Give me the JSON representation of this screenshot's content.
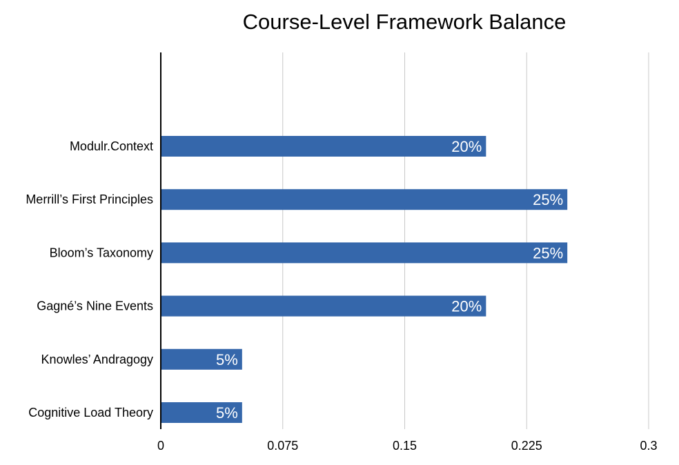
{
  "chart_data": {
    "type": "bar",
    "orientation": "horizontal",
    "title": "Course-Level Framework Balance",
    "xlabel": "",
    "ylabel": "",
    "xlim": [
      0,
      0.3
    ],
    "xticks": [
      "0",
      "0.075",
      "0.15",
      "0.225",
      "0.3"
    ],
    "grid": true,
    "categories": [
      "Modulr.Context",
      "Merrill’s First Principles",
      "Bloom’s Taxonomy",
      "Gagné’s Nine Events",
      "Knowles’ Andragogy",
      "Cognitive Load Theory"
    ],
    "values": [
      0.2,
      0.25,
      0.25,
      0.2,
      0.05,
      0.05
    ],
    "data_labels": [
      "20%",
      "25%",
      "25%",
      "20%",
      "5%",
      "5%"
    ],
    "bar_color": "#3567ab",
    "grid_color": "#c8c8c8",
    "axis_color": "#000000"
  }
}
